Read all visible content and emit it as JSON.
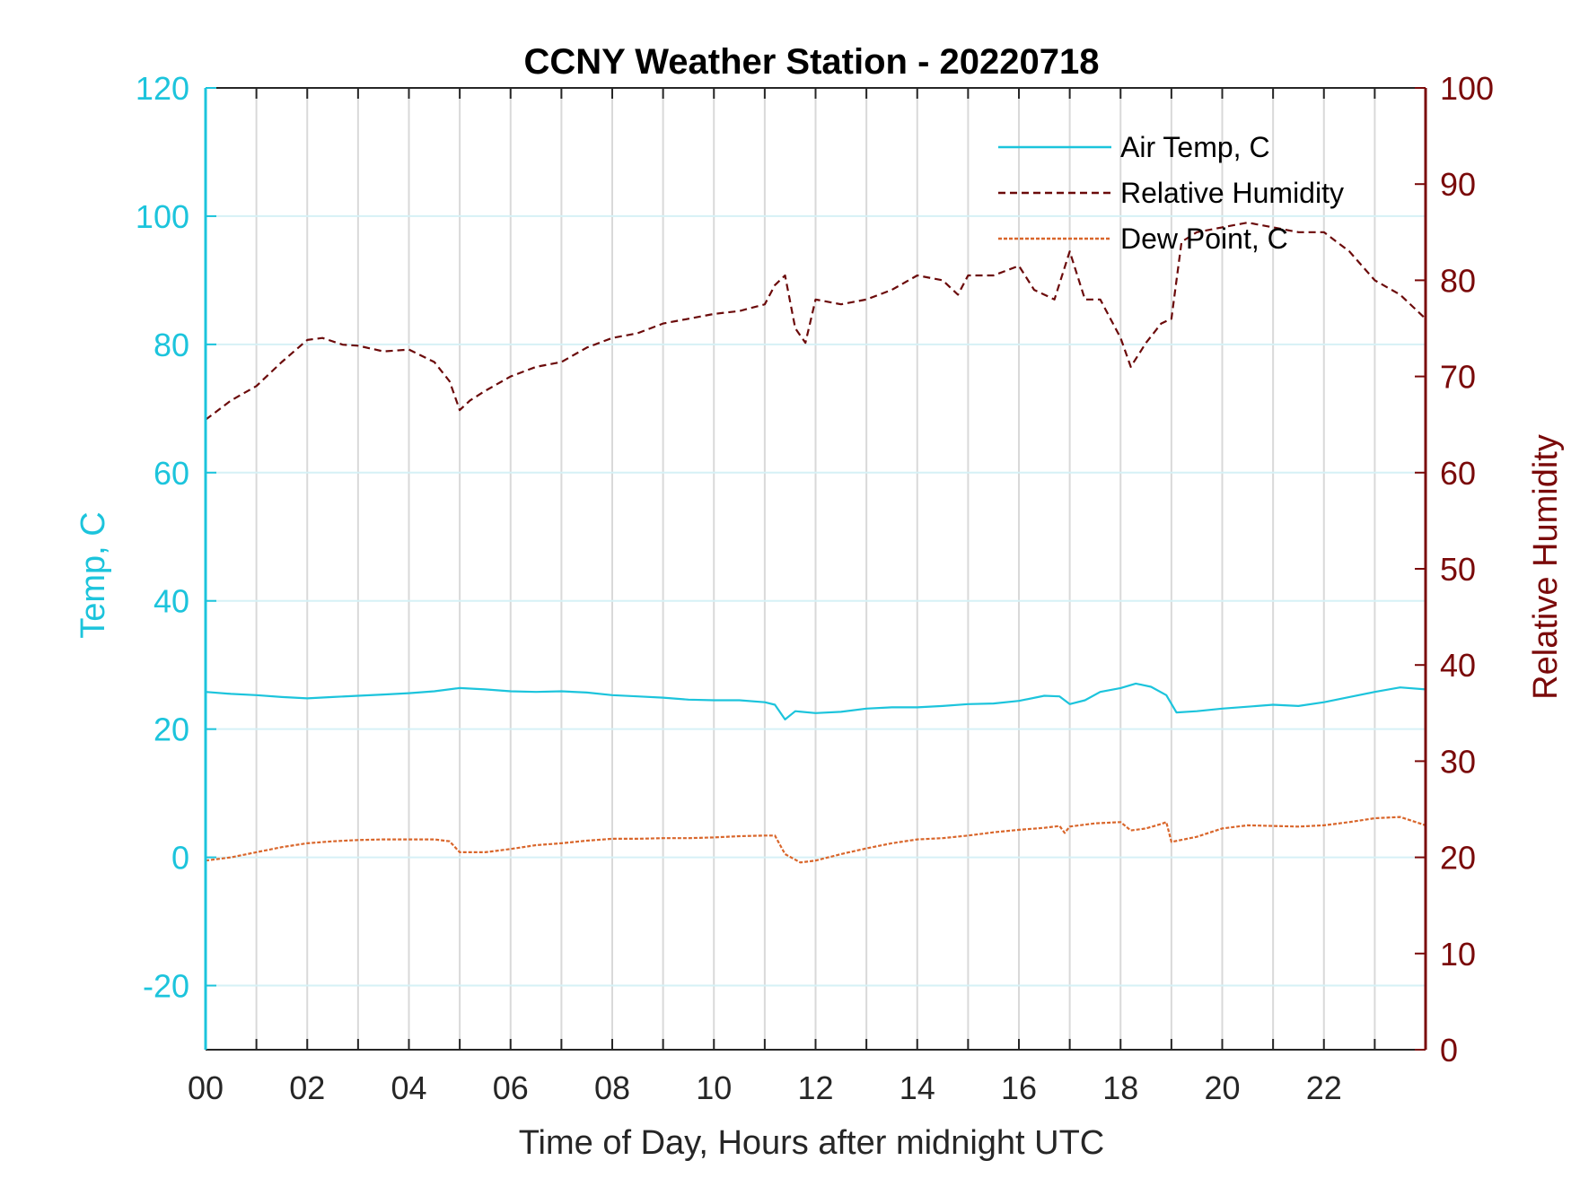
{
  "chart_data": {
    "type": "line",
    "title": "CCNY Weather Station - 20220718",
    "xlabel": "Time of Day, Hours after midnight UTC",
    "ylabel_left": "Temp, C",
    "ylabel_right": "Relative Humidity",
    "xlim": [
      0,
      24
    ],
    "ylim_left": [
      -30,
      120
    ],
    "ylim_right": [
      0,
      100
    ],
    "x_ticks": [
      0,
      2,
      4,
      6,
      8,
      10,
      12,
      14,
      16,
      18,
      20,
      22
    ],
    "x_tick_labels": [
      "00",
      "02",
      "04",
      "06",
      "08",
      "10",
      "12",
      "14",
      "16",
      "18",
      "20",
      "22"
    ],
    "y_left_ticks": [
      -20,
      0,
      20,
      40,
      60,
      80,
      100,
      120
    ],
    "y_left_tick_labels": [
      "-20",
      "0",
      "20",
      "40",
      "60",
      "80",
      "100",
      "120"
    ],
    "y_right_ticks": [
      0,
      10,
      20,
      30,
      40,
      50,
      60,
      70,
      80,
      90,
      100
    ],
    "y_right_tick_labels": [
      "0",
      "10",
      "20",
      "30",
      "40",
      "50",
      "60",
      "70",
      "80",
      "90",
      "100"
    ],
    "grid": true,
    "legend_position": "top-right",
    "colors": {
      "left_axis": "#1CC4DC",
      "right_axis": "#7A0A0A",
      "air_temp": "#1CC4DC",
      "humidity": "#6B0A0A",
      "dew_point": "#D9662B",
      "grid": "#d9d9d9"
    },
    "series": [
      {
        "name": "Air Temp, C",
        "axis": "left",
        "style": "solid",
        "x": [
          0,
          0.5,
          1,
          1.5,
          2,
          2.5,
          3,
          3.5,
          4,
          4.5,
          5,
          5.5,
          6,
          6.5,
          7,
          7.5,
          8,
          8.5,
          9,
          9.5,
          10,
          10.5,
          11,
          11.2,
          11.4,
          11.6,
          12,
          12.5,
          13,
          13.5,
          14,
          14.5,
          15,
          15.5,
          16,
          16.5,
          16.8,
          17,
          17.3,
          17.6,
          18,
          18.3,
          18.6,
          18.9,
          19.1,
          19.5,
          20,
          20.5,
          21,
          21.5,
          22,
          22.5,
          23,
          23.5,
          24
        ],
        "values": [
          25.8,
          25.5,
          25.3,
          25.0,
          24.8,
          25.0,
          25.2,
          25.4,
          25.6,
          25.9,
          26.4,
          26.2,
          25.9,
          25.8,
          25.9,
          25.7,
          25.3,
          25.1,
          24.9,
          24.6,
          24.5,
          24.5,
          24.2,
          23.8,
          21.5,
          22.8,
          22.5,
          22.7,
          23.2,
          23.4,
          23.4,
          23.6,
          23.9,
          24.0,
          24.4,
          25.2,
          25.1,
          23.9,
          24.5,
          25.8,
          26.4,
          27.1,
          26.6,
          25.3,
          22.6,
          22.8,
          23.2,
          23.5,
          23.8,
          23.6,
          24.2,
          25.0,
          25.8,
          26.5,
          26.2
        ]
      },
      {
        "name": "Relative Humidity",
        "axis": "right",
        "style": "dashed",
        "x": [
          0,
          0.5,
          1,
          1.5,
          2,
          2.3,
          2.7,
          3,
          3.5,
          4,
          4.5,
          4.8,
          5,
          5.2,
          5.5,
          6,
          6.5,
          7,
          7.5,
          8,
          8.5,
          9,
          9.5,
          10,
          10.5,
          11,
          11.2,
          11.4,
          11.6,
          11.8,
          12,
          12.5,
          13,
          13.5,
          14,
          14.5,
          14.8,
          15,
          15.5,
          16,
          16.3,
          16.7,
          17,
          17.3,
          17.6,
          18,
          18.2,
          18.5,
          18.8,
          19.0,
          19.2,
          19.5,
          20,
          20.5,
          21,
          21.5,
          22,
          22.5,
          23,
          23.5,
          24
        ],
        "values": [
          65.5,
          67.5,
          69.0,
          71.5,
          73.8,
          74.0,
          73.3,
          73.2,
          72.6,
          72.8,
          71.5,
          69.5,
          66.5,
          67.5,
          68.5,
          70.0,
          71.0,
          71.5,
          73.0,
          74.0,
          74.5,
          75.5,
          76.0,
          76.5,
          76.8,
          77.5,
          79.5,
          80.5,
          75.0,
          73.5,
          78.0,
          77.5,
          78.0,
          79.0,
          80.5,
          80.0,
          78.5,
          80.5,
          80.5,
          81.5,
          79.0,
          78.0,
          83.0,
          78.0,
          78.0,
          74.0,
          71.0,
          73.5,
          75.5,
          76.0,
          84.0,
          85.0,
          85.5,
          86.0,
          85.5,
          85.0,
          85.0,
          83.0,
          80.0,
          78.5,
          76.0
        ]
      },
      {
        "name": "Dew Point, C",
        "axis": "left",
        "style": "dotted",
        "x": [
          0,
          0.5,
          1,
          1.5,
          2,
          2.5,
          3,
          3.5,
          4,
          4.5,
          4.8,
          5.0,
          5.5,
          6,
          6.5,
          7,
          7.5,
          8,
          8.5,
          9,
          9.5,
          10,
          10.5,
          11,
          11.2,
          11.4,
          11.7,
          12,
          12.5,
          13,
          13.5,
          14,
          14.5,
          15,
          15.5,
          16,
          16.5,
          16.8,
          16.9,
          17,
          17.5,
          18,
          18.2,
          18.5,
          18.8,
          18.9,
          19.0,
          19.5,
          20,
          20.5,
          21,
          21.5,
          22,
          22.5,
          23,
          23.5,
          24
        ],
        "values": [
          -0.5,
          0,
          0.8,
          1.6,
          2.2,
          2.5,
          2.7,
          2.8,
          2.8,
          2.8,
          2.5,
          0.8,
          0.8,
          1.3,
          1.9,
          2.2,
          2.6,
          2.9,
          2.9,
          3.0,
          3.0,
          3.1,
          3.3,
          3.4,
          3.4,
          0.5,
          -0.8,
          -0.5,
          0.5,
          1.4,
          2.2,
          2.8,
          3.0,
          3.4,
          3.9,
          4.3,
          4.6,
          4.9,
          3.8,
          4.8,
          5.3,
          5.5,
          4.2,
          4.5,
          5.2,
          5.5,
          2.4,
          3.2,
          4.5,
          5.0,
          4.9,
          4.8,
          5.0,
          5.5,
          6.1,
          6.3,
          5.0
        ]
      }
    ]
  }
}
